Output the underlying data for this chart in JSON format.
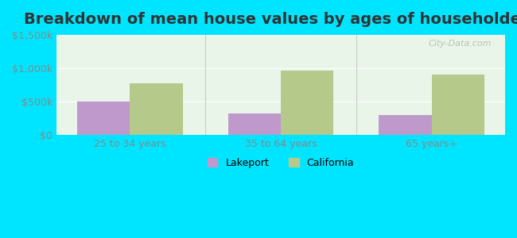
{
  "title": "Breakdown of mean house values by ages of householders",
  "categories": [
    "25 to 34 years",
    "35 to 64 years",
    "65 years+"
  ],
  "lakeport_values": [
    500000,
    320000,
    295000
  ],
  "california_values": [
    770000,
    960000,
    910000
  ],
  "lakeport_color": "#bf99cc",
  "california_color": "#b5c98a",
  "background_outer": "#00e5ff",
  "background_inner": "#e8f5e8",
  "ylim": [
    0,
    1500000
  ],
  "yticks": [
    0,
    500000,
    1000000,
    1500000
  ],
  "ytick_labels": [
    "$0",
    "$500k",
    "$1,000k",
    "$1,500k"
  ],
  "title_fontsize": 14,
  "bar_width": 0.35,
  "watermark": "City-Data.com",
  "legend_labels": [
    "Lakeport",
    "California"
  ],
  "tick_color": "#888888",
  "grid_color": "#ffffff",
  "divider_color": "#cccccc"
}
